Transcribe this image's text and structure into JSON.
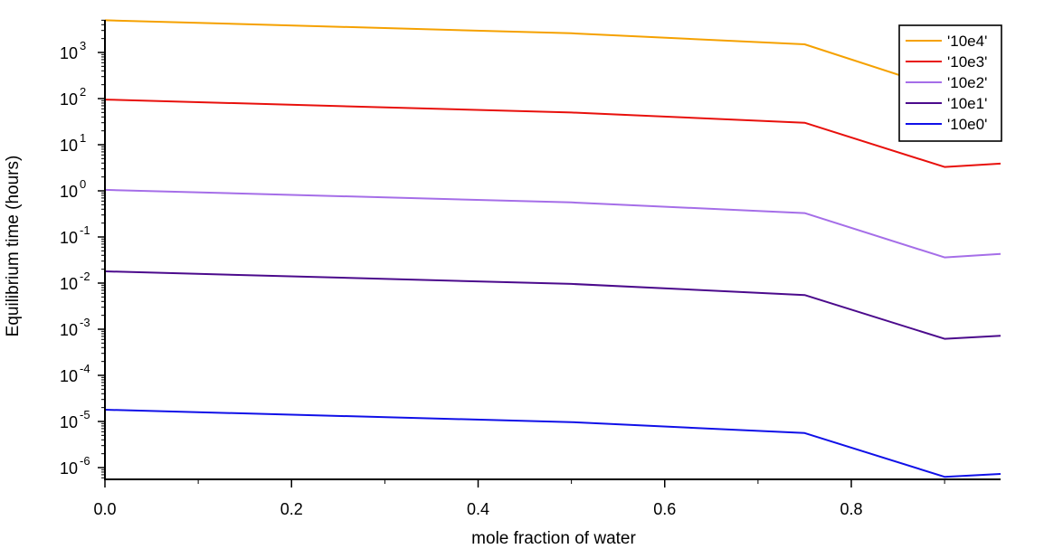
{
  "chart_data": {
    "type": "line",
    "xlabel": "mole fraction of water",
    "ylabel": "Equilibrium time (hours)",
    "xlim": [
      0,
      0.96
    ],
    "ylim": [
      5e-07,
      8000
    ],
    "yscale": "log",
    "x_ticks": [
      "0.0",
      "0.2",
      "0.4",
      "0.6",
      "0.8"
    ],
    "x_tick_values": [
      0,
      0.2,
      0.4,
      0.6,
      0.8
    ],
    "y_ticks": [
      {
        "base": "10",
        "exp": "3",
        "value": 1000
      },
      {
        "base": "10",
        "exp": "2",
        "value": 100
      },
      {
        "base": "10",
        "exp": "1",
        "value": 10
      },
      {
        "base": "10",
        "exp": "0",
        "value": 1
      },
      {
        "base": "10",
        "exp": "-1",
        "value": 0.1
      },
      {
        "base": "10",
        "exp": "-2",
        "value": 0.01
      },
      {
        "base": "10",
        "exp": "-3",
        "value": 0.001
      },
      {
        "base": "10",
        "exp": "-4",
        "value": 0.0001
      },
      {
        "base": "10",
        "exp": "-5",
        "value": 1e-05
      },
      {
        "base": "10",
        "exp": "-6",
        "value": 1e-06
      }
    ],
    "grid": false,
    "legend_position": "top-right",
    "x": [
      0,
      0.5,
      0.75,
      0.9,
      0.96
    ],
    "series": [
      {
        "name": "'10e4'",
        "color": "#f5a100",
        "values": [
          5000,
          2600,
          1500,
          155,
          180
        ]
      },
      {
        "name": "'10e3'",
        "color": "#e8100c",
        "values": [
          95,
          50,
          30,
          3.3,
          3.9
        ]
      },
      {
        "name": "'10e2'",
        "color": "#a56ee8",
        "values": [
          1.05,
          0.56,
          0.33,
          0.036,
          0.043
        ]
      },
      {
        "name": "'10e1'",
        "color": "#4b0a8c",
        "values": [
          0.018,
          0.0096,
          0.0055,
          0.00062,
          0.00072
        ]
      },
      {
        "name": "'10e0'",
        "color": "#1010e8",
        "values": [
          1.8e-05,
          9.7e-06,
          5.6e-06,
          6.3e-07,
          7.3e-07
        ]
      }
    ]
  }
}
